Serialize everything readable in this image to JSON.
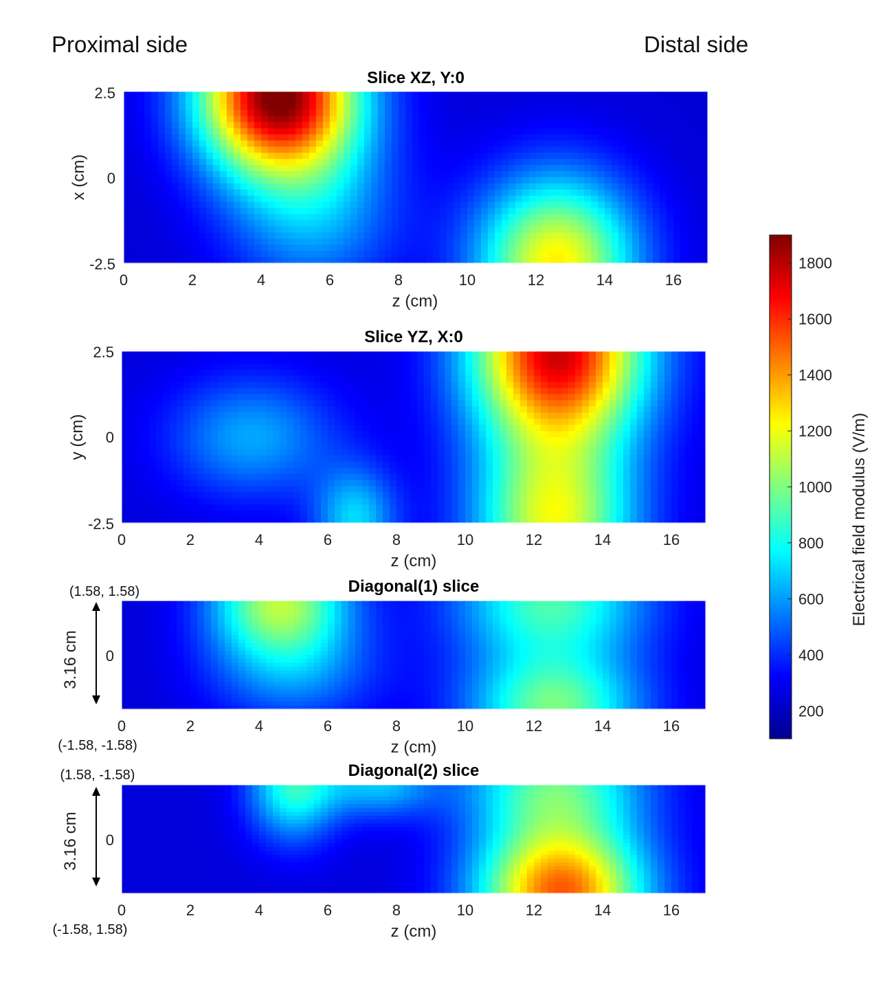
{
  "header": {
    "left": "Proximal side",
    "right": "Distal side"
  },
  "chart_data": [
    {
      "type": "heatmap",
      "title": "Slice XZ, Y:0",
      "xlabel": "z (cm)",
      "ylabel": "x (cm)",
      "xlim": [
        0,
        17
      ],
      "ylim": [
        -2.5,
        2.5
      ],
      "xticks": [
        "0",
        "2",
        "4",
        "6",
        "8",
        "10",
        "12",
        "14",
        "16"
      ],
      "yticks": [
        "2.5",
        "0",
        "-2.5"
      ],
      "hotspots": [
        {
          "z": 4.5,
          "v": 0.98,
          "peak": 1900,
          "rz": 2.3,
          "rv": 0.45
        },
        {
          "z": 12.6,
          "v": 0.0,
          "peak": 1250,
          "rz": 2.3,
          "rv": 0.5
        },
        {
          "z": 5.5,
          "v": 0.3,
          "peak": 620,
          "rz": 2.5,
          "rv": 0.5
        }
      ],
      "base_field": 250
    },
    {
      "type": "heatmap",
      "title": "Slice YZ, X:0",
      "xlabel": "z (cm)",
      "ylabel": "y (cm)",
      "xlim": [
        0,
        17
      ],
      "ylim": [
        -2.5,
        2.5
      ],
      "xticks": [
        "0",
        "2",
        "4",
        "6",
        "8",
        "10",
        "12",
        "14",
        "16"
      ],
      "yticks": [
        "2.5",
        "0",
        "-2.5"
      ],
      "hotspots": [
        {
          "z": 12.7,
          "v": 1.0,
          "peak": 1750,
          "rz": 2.5,
          "rv": 0.55
        },
        {
          "z": 12.6,
          "v": 0.0,
          "peak": 1150,
          "rz": 2.3,
          "rv": 0.5
        },
        {
          "z": 3.8,
          "v": 0.5,
          "peak": 620,
          "rz": 2.4,
          "rv": 0.35
        },
        {
          "z": 6.8,
          "v": 0.02,
          "peak": 700,
          "rz": 1.2,
          "rv": 0.3
        }
      ],
      "base_field": 260
    },
    {
      "type": "heatmap",
      "title": "Diagonal(1) slice",
      "xlabel": "z (cm)",
      "ylabel": "3.16 cm",
      "corner_top": "(1.58, 1.58)",
      "corner_bottom": "(-1.58, -1.58)",
      "xlim": [
        0,
        17
      ],
      "ylim": [
        -1.58,
        1.58
      ],
      "xticks": [
        "0",
        "2",
        "4",
        "6",
        "8",
        "10",
        "12",
        "14",
        "16"
      ],
      "yticks": [
        "0"
      ],
      "hotspots": [
        {
          "z": 4.6,
          "v": 1.0,
          "peak": 1050,
          "rz": 2.0,
          "rv": 0.5
        },
        {
          "z": 12.5,
          "v": 1.0,
          "peak": 900,
          "rz": 2.8,
          "rv": 0.6
        },
        {
          "z": 12.6,
          "v": 0.0,
          "peak": 950,
          "rz": 2.5,
          "rv": 0.5
        },
        {
          "z": 5.0,
          "v": 0.35,
          "peak": 560,
          "rz": 2.5,
          "rv": 0.5
        }
      ],
      "base_field": 250
    },
    {
      "type": "heatmap",
      "title": "Diagonal(2) slice",
      "xlabel": "z (cm)",
      "ylabel": "3.16 cm",
      "corner_top": "(1.58, -1.58)",
      "corner_bottom": "(-1.58, 1.58)",
      "xlim": [
        0,
        17
      ],
      "ylim": [
        -1.58,
        1.58
      ],
      "xticks": [
        "0",
        "2",
        "4",
        "6",
        "8",
        "10",
        "12",
        "14",
        "16"
      ],
      "yticks": [
        "0"
      ],
      "hotspots": [
        {
          "z": 12.8,
          "v": 0.0,
          "peak": 1500,
          "rz": 2.4,
          "rv": 0.6
        },
        {
          "z": 12.6,
          "v": 1.0,
          "peak": 900,
          "rz": 2.6,
          "rv": 0.55
        },
        {
          "z": 5.0,
          "v": 1.0,
          "peak": 850,
          "rz": 1.3,
          "rv": 0.5
        },
        {
          "z": 7.5,
          "v": 1.0,
          "peak": 650,
          "rz": 1.6,
          "rv": 0.3
        }
      ],
      "base_field": 260
    }
  ],
  "colorbar": {
    "label": "Electrical field modulus (V/m)",
    "min": 100,
    "max": 1900,
    "ticks": [
      "200",
      "400",
      "600",
      "800",
      "1000",
      "1200",
      "1400",
      "1600",
      "1800"
    ]
  }
}
